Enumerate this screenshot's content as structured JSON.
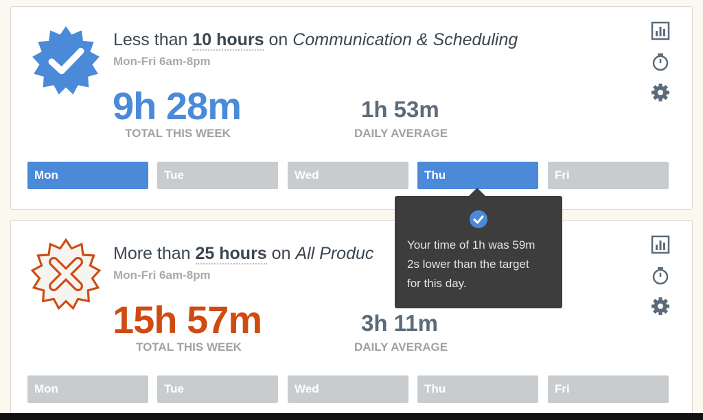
{
  "goals": [
    {
      "status": "met",
      "status_icon": "check-badge-icon",
      "title_prefix": "Less than",
      "title_amount": "10 hours",
      "title_on": "on",
      "title_category": "Communication & Scheduling",
      "schedule": "Mon-Fri 6am-8pm",
      "total_value": "9h 28m",
      "total_label": "TOTAL THIS WEEK",
      "avg_value": "1h 53m",
      "avg_label": "DAILY AVERAGE",
      "days": [
        "Mon",
        "Tue",
        "Wed",
        "Thu",
        "Fri"
      ],
      "active_days": [
        "Mon",
        "Thu"
      ]
    },
    {
      "status": "missed",
      "status_icon": "x-badge-icon",
      "title_prefix": "More than",
      "title_amount": "25 hours",
      "title_on": "on",
      "title_category": "All Produc",
      "schedule": "Mon-Fri 6am-8pm",
      "total_value": "15h 57m",
      "total_label": "TOTAL THIS WEEK",
      "avg_value": "3h 11m",
      "avg_label": "DAILY AVERAGE",
      "days": [
        "Mon",
        "Tue",
        "Wed",
        "Thu",
        "Fri"
      ],
      "active_days": []
    }
  ],
  "card_icons": [
    "bar-chart-icon",
    "stopwatch-icon",
    "gear-icon"
  ],
  "tooltip": {
    "icon": "check-circle-icon",
    "line1": "Your time of 1h was 59m",
    "line2": "2s lower than the target",
    "line3": "for this day."
  },
  "colors": {
    "accent_blue": "#4a8ad9",
    "warning_orange": "#cf4b12",
    "day_inactive": "#c9cccf",
    "tooltip_bg": "#3d3d3d",
    "icon_gray": "#5b6b7a"
  }
}
